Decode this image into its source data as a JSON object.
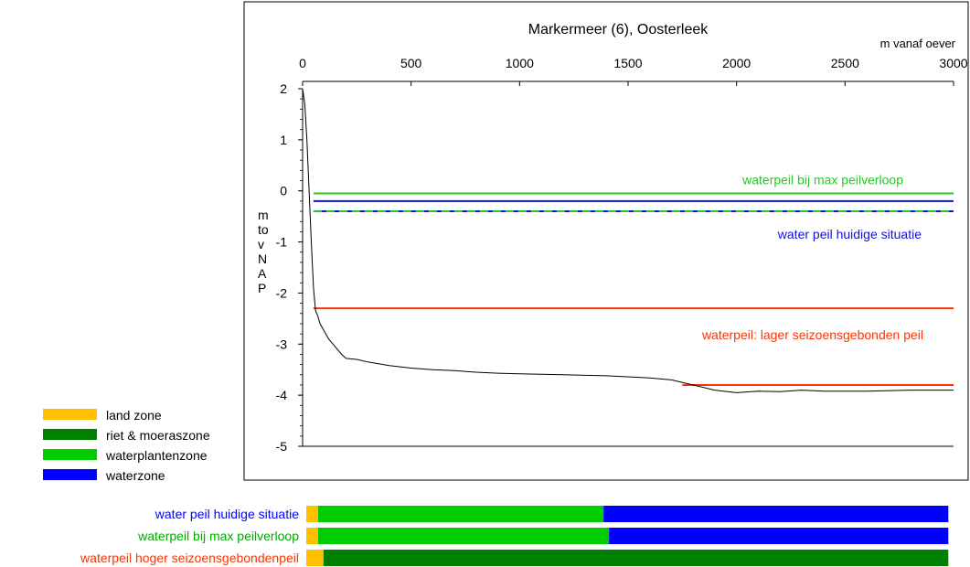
{
  "chart_data": {
    "type": "line",
    "title": "Markermeer (6), Oosterleek",
    "xlabel": "m vanaf oever",
    "ylabel": "m to v N A P",
    "xlim": [
      0,
      3000
    ],
    "ylim": [
      -5,
      2
    ],
    "x_ticks": [
      "0",
      "500",
      "1000",
      "1500",
      "2000",
      "2500",
      "3000"
    ],
    "y_ticks": [
      "2",
      "1",
      "0",
      "-1",
      "-2",
      "-3",
      "-4",
      "-5"
    ],
    "profile": {
      "x": [
        0,
        10,
        20,
        30,
        40,
        50,
        60,
        70,
        80,
        100,
        120,
        150,
        180,
        200,
        250,
        300,
        400,
        500,
        600,
        700,
        800,
        900,
        1000,
        1200,
        1400,
        1600,
        1700,
        1800,
        1900,
        2000,
        2100,
        2200,
        2300,
        2400,
        2500,
        2600,
        2800,
        3000
      ],
      "y": [
        2.0,
        1.7,
        1.0,
        0.0,
        -1.0,
        -1.9,
        -2.35,
        -2.45,
        -2.6,
        -2.75,
        -2.9,
        -3.05,
        -3.2,
        -3.28,
        -3.3,
        -3.35,
        -3.42,
        -3.47,
        -3.5,
        -3.52,
        -3.55,
        -3.57,
        -3.58,
        -3.6,
        -3.62,
        -3.66,
        -3.7,
        -3.8,
        -3.9,
        -3.95,
        -3.92,
        -3.93,
        -3.9,
        -3.92,
        -3.92,
        -3.92,
        -3.9,
        -3.9
      ]
    },
    "lines": [
      {
        "label": "waterpeil bij max peilverloop",
        "color": "#22cc22",
        "y": -0.05,
        "x_start": 50,
        "x_end": 3000,
        "dashed": false
      },
      {
        "label": "water peil huidige situatie",
        "color": "#1111dd",
        "y": -0.2,
        "x_start": 50,
        "x_end": 3000,
        "dashed": false
      },
      {
        "label": "",
        "color": "#1111dd",
        "y": -0.4,
        "x_start": 50,
        "x_end": 3000,
        "dashed": false
      },
      {
        "label": "",
        "color": "#22cc22",
        "y": -0.4,
        "x_start": 50,
        "x_end": 3000,
        "dashed": true
      },
      {
        "label": "waterpeil: lager seizoensgebonden peil",
        "color": "#ff3300",
        "y": -2.3,
        "x_start": 50,
        "x_end": 3000,
        "dashed": false
      },
      {
        "label": "",
        "color": "#ff3300",
        "y": -3.8,
        "x_start": 1750,
        "x_end": 3000,
        "dashed": false
      }
    ],
    "legend": [
      {
        "label": "land zone",
        "color": "#ffc000"
      },
      {
        "label": "riet & moeraszone",
        "color": "#008000"
      },
      {
        "label": "waterplantenzone",
        "color": "#00cc00"
      },
      {
        "label": "waterzone",
        "color": "#0000ff"
      }
    ],
    "zone_bars": [
      {
        "label": "water peil huidige situatie",
        "label_color": "#0000ff",
        "segments": [
          {
            "zone": "land zone",
            "from": 0,
            "to": 55
          },
          {
            "zone": "waterplantenzone",
            "from": 55,
            "to": 1380
          },
          {
            "zone": "waterzone",
            "from": 1380,
            "to": 2980
          }
        ]
      },
      {
        "label": "waterpeil bij max peilverloop",
        "label_color": "#00aa00",
        "segments": [
          {
            "zone": "land zone",
            "from": 0,
            "to": 55
          },
          {
            "zone": "waterplantenzone",
            "from": 55,
            "to": 1405
          },
          {
            "zone": "waterzone",
            "from": 1405,
            "to": 2980
          }
        ]
      },
      {
        "label": "waterpeil hoger seizoensgebondenpeil",
        "label_color": "#ff3300",
        "segments": [
          {
            "zone": "land zone",
            "from": 0,
            "to": 80
          },
          {
            "zone": "riet & moeraszone",
            "from": 80,
            "to": 2980
          }
        ]
      }
    ]
  }
}
